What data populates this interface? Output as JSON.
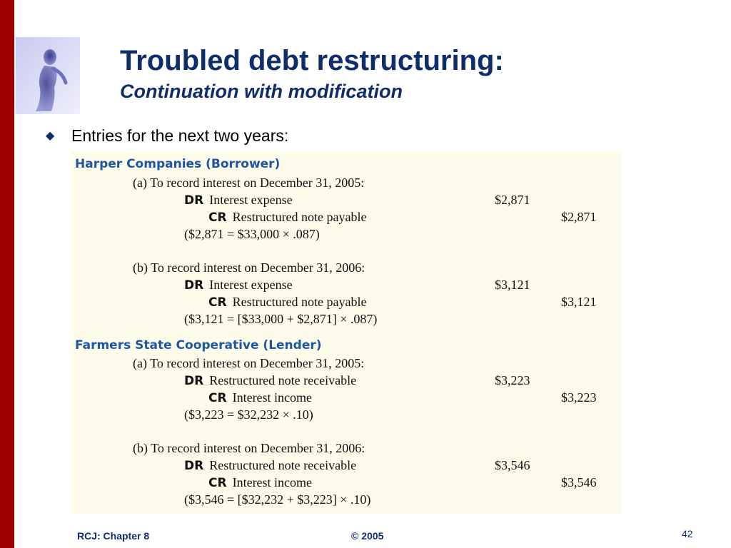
{
  "slide": {
    "title": "Troubled debt restructuring:",
    "subtitle": "Continuation with modification",
    "bullet": "Entries for the next two years:",
    "colors": {
      "accent_bar": "#a00000",
      "title": "#0f2d6b",
      "section": "#1d55a6",
      "panel_bg": "#fdfbea"
    },
    "logo_icon": "figure-silhouette-icon"
  },
  "sections": [
    {
      "title": "Harper Companies (Borrower)",
      "entries": [
        {
          "heading": "(a)  To record interest on December 31, 2005:",
          "dr_tag": "DR",
          "dr_account": "Interest expense",
          "dr_amount": "$2,871",
          "cr_tag": "CR",
          "cr_account": "Restructured note payable",
          "cr_amount": "$2,871",
          "calc": "($2,871 = $33,000 × .087)"
        },
        {
          "heading": "(b)  To record interest on December 31, 2006:",
          "dr_tag": "DR",
          "dr_account": "Interest expense",
          "dr_amount": "$3,121",
          "cr_tag": "CR",
          "cr_account": "Restructured note payable",
          "cr_amount": "$3,121",
          "calc": "($3,121 = [$33,000 + $2,871] × .087)"
        }
      ]
    },
    {
      "title": "Farmers State Cooperative (Lender)",
      "entries": [
        {
          "heading": "(a)  To record interest on December 31, 2005:",
          "dr_tag": "DR",
          "dr_account": "Restructured note receivable",
          "dr_amount": "$3,223",
          "cr_tag": "CR",
          "cr_account": "Interest income",
          "cr_amount": "$3,223",
          "calc": "($3,223 = $32,232 × .10)"
        },
        {
          "heading": "(b)  To record interest on December 31, 2006:",
          "dr_tag": "DR",
          "dr_account": "Restructured note receivable",
          "dr_amount": "$3,546",
          "cr_tag": "CR",
          "cr_account": "Interest income",
          "cr_amount": "$3,546",
          "calc": "($3,546 = [$32,232 + $3,223] × .10)"
        }
      ]
    }
  ],
  "footer": {
    "left": "RCJ: Chapter 8",
    "center": "© 2005",
    "page": "42"
  }
}
